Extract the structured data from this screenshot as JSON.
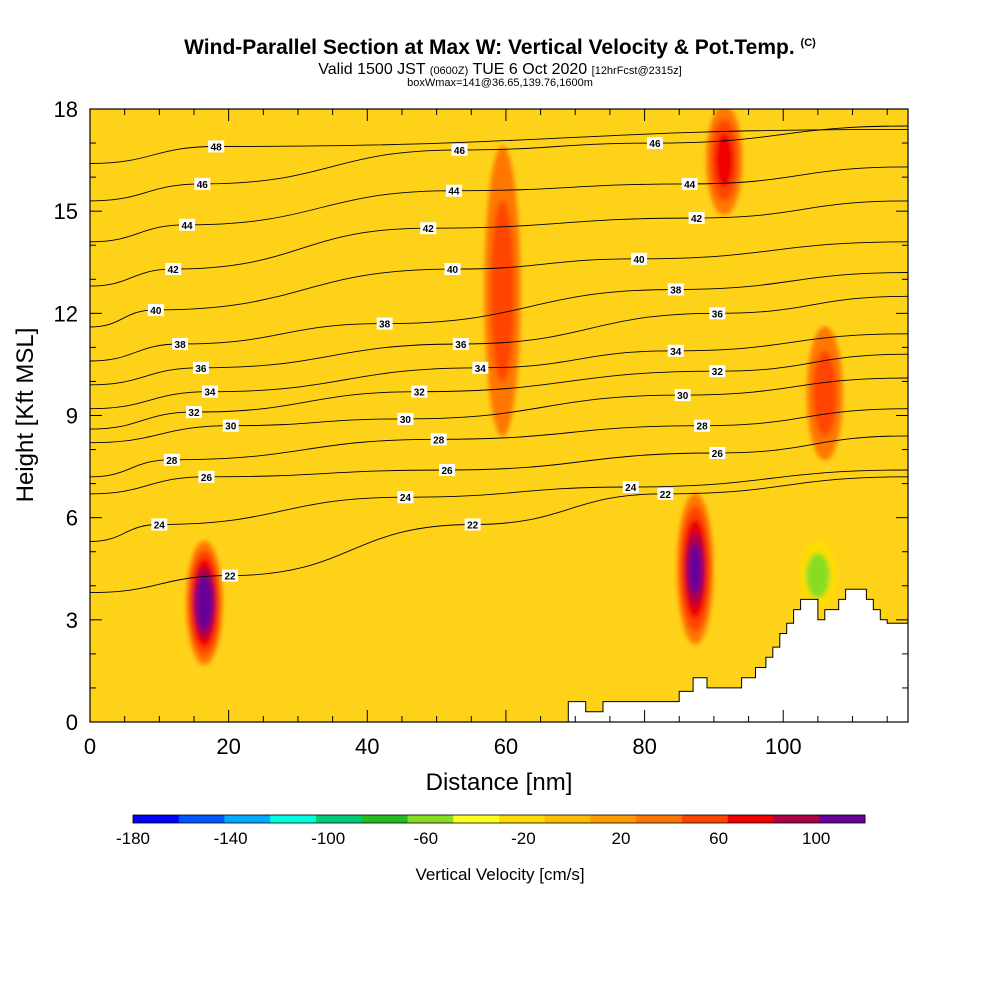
{
  "header": {
    "title": "Wind-Parallel Section at Max W: Vertical Velocity & Pot.Temp.",
    "title_mark": "(C)",
    "subtitle_main": "Valid 1500 JST",
    "subtitle_utc": "(0600Z)",
    "subtitle_date": "TUE 6 Oct 2020",
    "subtitle_fcst": "[12hrFcst@2315z]",
    "subtitle2": "boxWmax=141@36.65,139.76,1600m"
  },
  "chart_data": {
    "type": "heatmap",
    "xlabel": "Distance [nm]",
    "ylabel": "Height [Kft MSL]",
    "xlim": [
      0,
      118
    ],
    "ylim": [
      0,
      18
    ],
    "x_ticks": [
      0,
      20,
      40,
      60,
      80,
      100
    ],
    "y_ticks": [
      0,
      3,
      6,
      9,
      12,
      15,
      18
    ],
    "colorbar": {
      "title": "Vertical Velocity [cm/s]",
      "tick_labels": [
        "-180",
        "-140",
        "-100",
        "-60",
        "-20",
        "20",
        "60",
        "100"
      ],
      "tick_values": [
        -180,
        -140,
        -100,
        -60,
        -20,
        20,
        60,
        100
      ],
      "range": [
        -180,
        120
      ],
      "colors": [
        "#0000ff",
        "#0055ff",
        "#00aaff",
        "#00ffdd",
        "#00cc77",
        "#22bb22",
        "#88dd22",
        "#ffff22",
        "#ffdd00",
        "#ffbb00",
        "#ff9900",
        "#ff7700",
        "#ff4400",
        "#ee0000",
        "#aa0044",
        "#660099"
      ]
    },
    "grid": false,
    "vertical_velocity_features": [
      {
        "x_center": 16.5,
        "height_bottom": 1.8,
        "height_top": 5.2,
        "peak_w": 120
      },
      {
        "x_center": 87.3,
        "height_bottom": 2.4,
        "height_top": 6.6,
        "peak_w": 100
      },
      {
        "x_center": 59.5,
        "height_bottom": 8.5,
        "height_top": 16.8,
        "peak_w": 50
      },
      {
        "x_center": 91.5,
        "height_bottom": 15.0,
        "height_top": 18.0,
        "peak_w": 60
      },
      {
        "x_center": 106.0,
        "height_bottom": 7.8,
        "height_top": 11.5,
        "peak_w": 45
      },
      {
        "x_center": 105.0,
        "height_bottom": 3.4,
        "height_top": 5.2,
        "peak_w": -50
      }
    ],
    "potential_temperature_contour_labels": [
      {
        "value": "48",
        "x": 18.2,
        "y": 16.9
      },
      {
        "value": "46",
        "x": 16.2,
        "y": 15.8
      },
      {
        "value": "44",
        "x": 14.0,
        "y": 14.6
      },
      {
        "value": "42",
        "x": 12.0,
        "y": 13.3
      },
      {
        "value": "40",
        "x": 9.5,
        "y": 12.1
      },
      {
        "value": "38",
        "x": 13.0,
        "y": 11.1
      },
      {
        "value": "36",
        "x": 16.0,
        "y": 10.4
      },
      {
        "value": "34",
        "x": 17.3,
        "y": 9.7
      },
      {
        "value": "32",
        "x": 15.0,
        "y": 9.1
      },
      {
        "value": "30",
        "x": 20.3,
        "y": 8.7
      },
      {
        "value": "28",
        "x": 11.8,
        "y": 7.7
      },
      {
        "value": "26",
        "x": 16.8,
        "y": 7.2
      },
      {
        "value": "24",
        "x": 10.0,
        "y": 5.8
      },
      {
        "value": "22",
        "x": 20.2,
        "y": 4.3
      },
      {
        "value": "46",
        "x": 53.3,
        "y": 16.8
      },
      {
        "value": "44",
        "x": 52.5,
        "y": 15.6
      },
      {
        "value": "42",
        "x": 48.8,
        "y": 14.5
      },
      {
        "value": "40",
        "x": 52.3,
        "y": 13.3
      },
      {
        "value": "38",
        "x": 42.5,
        "y": 11.7
      },
      {
        "value": "36",
        "x": 53.5,
        "y": 11.1
      },
      {
        "value": "34",
        "x": 56.3,
        "y": 10.4
      },
      {
        "value": "32",
        "x": 47.5,
        "y": 9.7
      },
      {
        "value": "30",
        "x": 45.5,
        "y": 8.9
      },
      {
        "value": "28",
        "x": 50.3,
        "y": 8.3
      },
      {
        "value": "26",
        "x": 51.5,
        "y": 7.4
      },
      {
        "value": "24",
        "x": 45.5,
        "y": 6.6
      },
      {
        "value": "22",
        "x": 55.2,
        "y": 5.8
      },
      {
        "value": "46",
        "x": 81.5,
        "y": 17.0
      },
      {
        "value": "44",
        "x": 86.5,
        "y": 15.8
      },
      {
        "value": "42",
        "x": 87.5,
        "y": 14.8
      },
      {
        "value": "40",
        "x": 79.2,
        "y": 13.6
      },
      {
        "value": "38",
        "x": 84.5,
        "y": 12.7
      },
      {
        "value": "36",
        "x": 90.5,
        "y": 12.0
      },
      {
        "value": "34",
        "x": 84.5,
        "y": 10.9
      },
      {
        "value": "32",
        "x": 90.5,
        "y": 10.3
      },
      {
        "value": "30",
        "x": 85.5,
        "y": 9.6
      },
      {
        "value": "28",
        "x": 88.3,
        "y": 8.7
      },
      {
        "value": "26",
        "x": 90.5,
        "y": 7.9
      },
      {
        "value": "24",
        "x": 78.0,
        "y": 6.9
      },
      {
        "value": "22",
        "x": 83.0,
        "y": 6.7
      }
    ],
    "terrain_profile": [
      [
        0,
        0
      ],
      [
        69,
        0
      ],
      [
        69,
        0.6
      ],
      [
        71.5,
        0.6
      ],
      [
        71.5,
        0.3
      ],
      [
        74,
        0.3
      ],
      [
        74,
        0.6
      ],
      [
        85,
        0.6
      ],
      [
        85,
        0.9
      ],
      [
        87,
        0.9
      ],
      [
        87,
        1.3
      ],
      [
        89,
        1.3
      ],
      [
        89,
        1.0
      ],
      [
        94,
        1.0
      ],
      [
        94,
        1.3
      ],
      [
        96,
        1.3
      ],
      [
        96,
        1.6
      ],
      [
        97.5,
        1.6
      ],
      [
        97.5,
        1.9
      ],
      [
        98.5,
        1.9
      ],
      [
        98.5,
        2.2
      ],
      [
        99.5,
        2.2
      ],
      [
        99.5,
        2.6
      ],
      [
        100.5,
        2.6
      ],
      [
        100.5,
        2.9
      ],
      [
        101.5,
        2.9
      ],
      [
        101.5,
        3.3
      ],
      [
        102.5,
        3.3
      ],
      [
        102.5,
        3.6
      ],
      [
        105,
        3.6
      ],
      [
        105,
        3.0
      ],
      [
        106,
        3.0
      ],
      [
        106,
        3.3
      ],
      [
        108,
        3.3
      ],
      [
        108,
        3.6
      ],
      [
        109,
        3.6
      ],
      [
        109,
        3.9
      ],
      [
        112,
        3.9
      ],
      [
        112,
        3.6
      ],
      [
        113,
        3.6
      ],
      [
        113,
        3.3
      ],
      [
        114,
        3.3
      ],
      [
        114,
        3.0
      ],
      [
        115,
        3.0
      ],
      [
        115,
        2.9
      ],
      [
        118,
        2.9
      ],
      [
        118,
        0
      ]
    ]
  }
}
